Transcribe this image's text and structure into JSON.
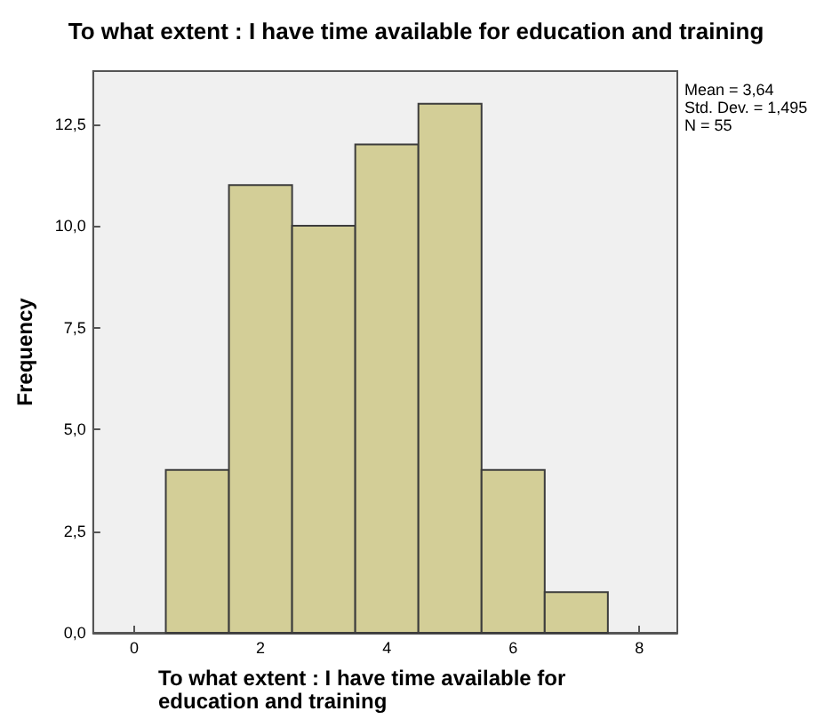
{
  "chart_data": {
    "type": "histogram",
    "title": "To what extent : I have time available for education and training",
    "xlabel": "To what extent : I have time available for education and training",
    "ylabel": "Frequency",
    "bins": [
      0.5,
      1.5,
      2.5,
      3.5,
      4.5,
      5.5,
      6.5,
      7.5
    ],
    "values": [
      4,
      11,
      10,
      12,
      13,
      4,
      1
    ],
    "color": "#d3ce97",
    "xlim": [
      -0.65,
      8.6
    ],
    "xticks": [
      0,
      2,
      4,
      6,
      8
    ],
    "ylim": [
      0,
      13.8
    ],
    "yticks": [
      {
        "value": 0,
        "label": "0,0"
      },
      {
        "value": 2.5,
        "label": "2,5"
      },
      {
        "value": 5,
        "label": "5,0"
      },
      {
        "value": 7.5,
        "label": "7,5"
      },
      {
        "value": 10,
        "label": "10,0"
      },
      {
        "value": 12.5,
        "label": "12,5"
      }
    ],
    "annotations": [
      "Mean = 3,64",
      "Std. Dev. = 1,495",
      "N = 55"
    ],
    "grid": false
  }
}
